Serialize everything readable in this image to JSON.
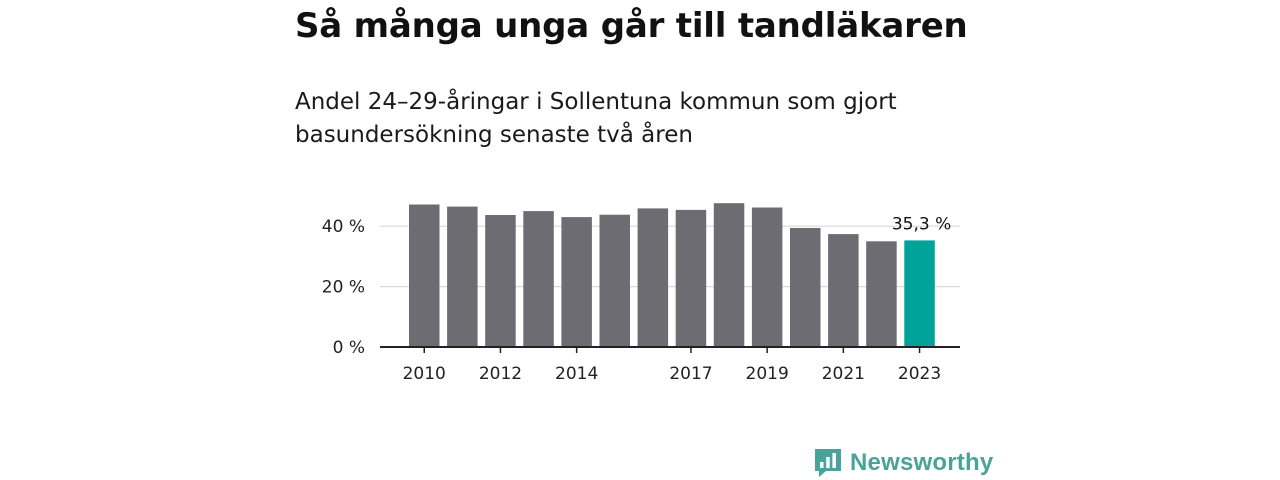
{
  "title": "Så många unga går till tandläkaren",
  "subtitle": "Andel 24–29-åringar i Sollentuna kommun som gjort basundersökning senaste två åren",
  "brand": {
    "name": "Newsworthy",
    "color": "#4aa39a"
  },
  "chart_data": {
    "type": "bar",
    "categories": [
      "2010",
      "2011",
      "2012",
      "2013",
      "2014",
      "2015",
      "2016",
      "2017",
      "2018",
      "2019",
      "2020",
      "2021",
      "2022",
      "2023"
    ],
    "values": [
      47.2,
      46.5,
      43.7,
      45.0,
      43.0,
      43.8,
      45.9,
      45.4,
      47.6,
      46.2,
      39.4,
      37.4,
      35.0,
      35.3
    ],
    "x_tick_labels": [
      "2010",
      "",
      "2012",
      "",
      "2014",
      "",
      "",
      "2017",
      "",
      "2019",
      "",
      "2021",
      "",
      "2023"
    ],
    "y_ticks": [
      0,
      20,
      40
    ],
    "y_tick_labels": [
      "0 %",
      "20 %",
      "40 %"
    ],
    "ylim": [
      0,
      50
    ],
    "highlight_index": 13,
    "highlight_label": "35,3 %",
    "colors": {
      "bar": "#6d6c73",
      "highlight": "#00a39a",
      "grid": "#d9d9d9",
      "axis": "#222222"
    },
    "grid": true
  }
}
